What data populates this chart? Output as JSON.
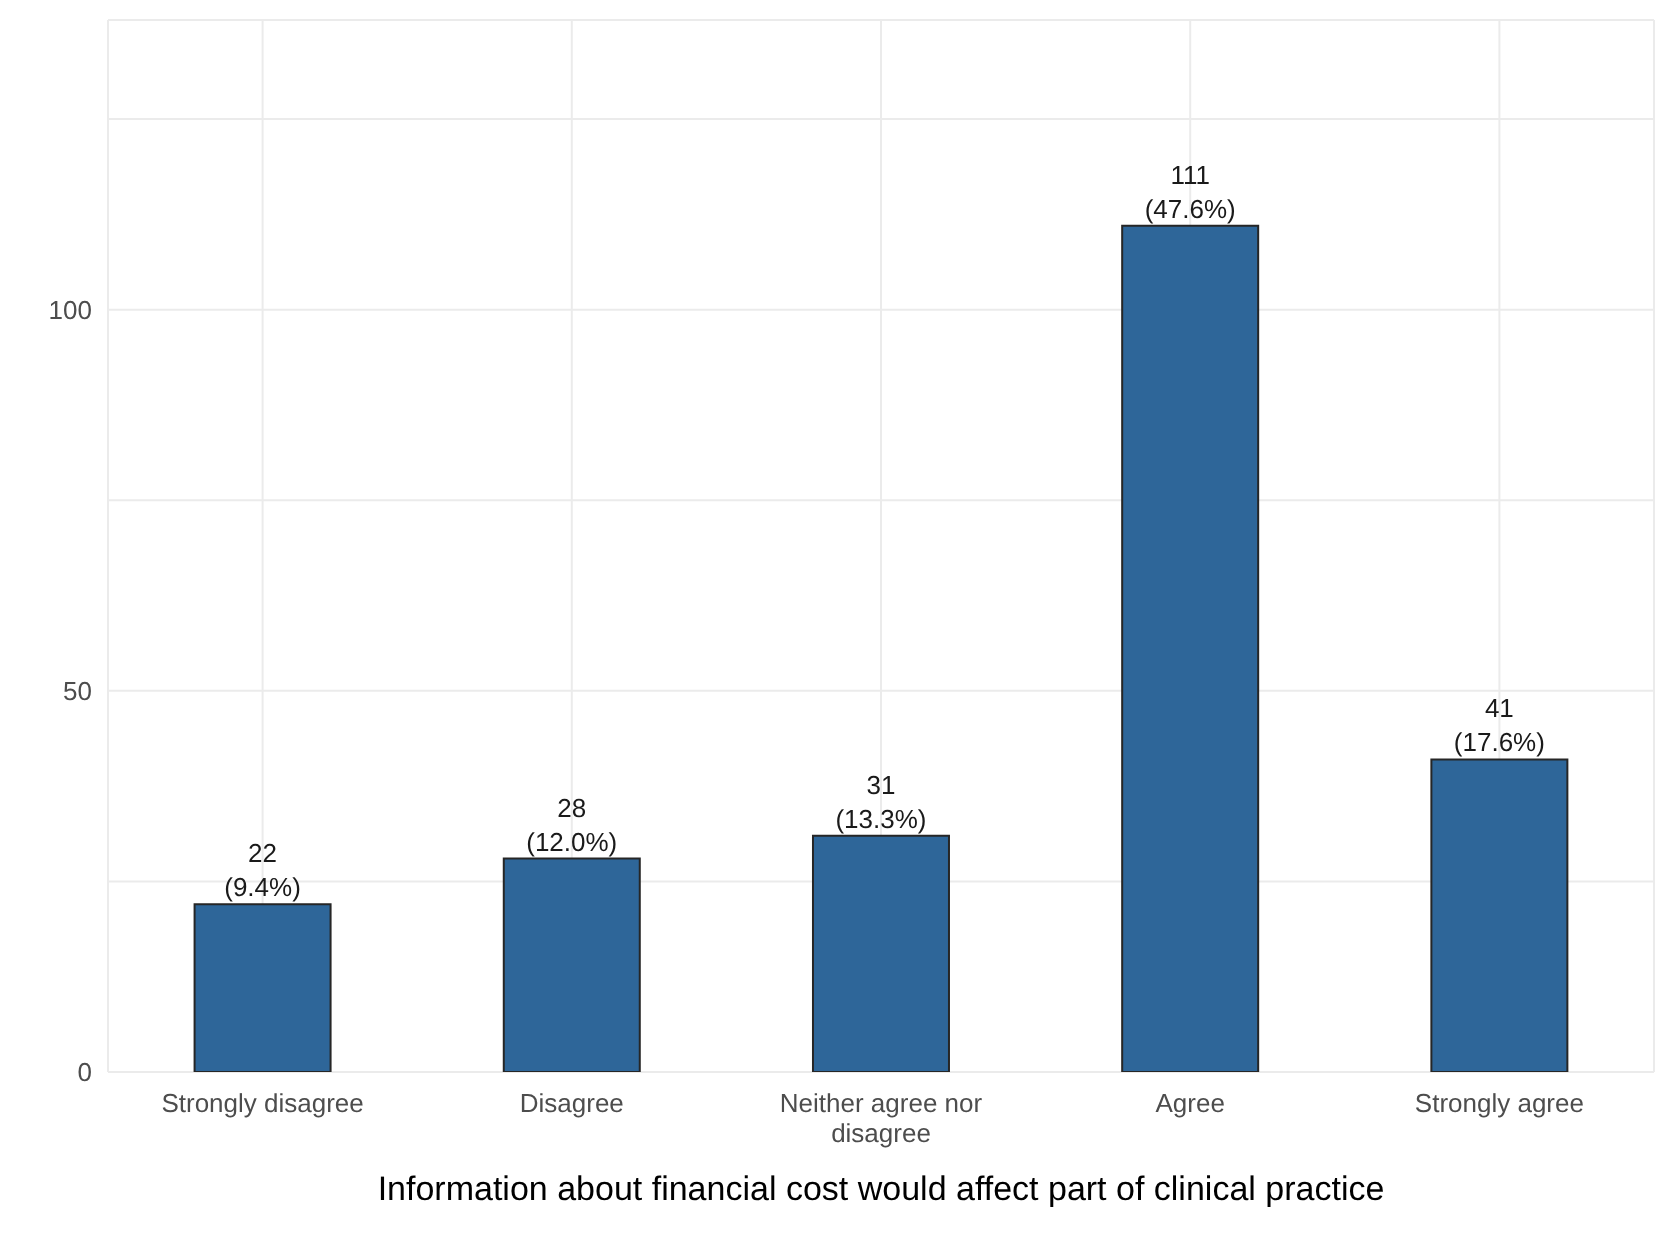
{
  "chart_data": {
    "type": "bar",
    "xlabel": "Information about financial cost would affect part of clinical practice",
    "categories": [
      "Strongly disagree",
      "Disagree",
      "Neither agree nor disagree",
      "Agree",
      "Strongly agree"
    ],
    "values": [
      22,
      28,
      31,
      111,
      41
    ],
    "value_labels": [
      "22\n(9.4%)",
      "28\n(12.0%)",
      "31\n(13.3%)",
      "111\n(47.6%)",
      "41\n(17.6%)"
    ],
    "color": "#2e6699",
    "ylim": [
      0,
      138
    ],
    "yticks": [
      0,
      {
        "value": 25,
        "label": null
      },
      50,
      {
        "value": 75,
        "label": null
      },
      100,
      {
        "value": 125,
        "label": null
      }
    ],
    "grid": true,
    "legend": false
  }
}
